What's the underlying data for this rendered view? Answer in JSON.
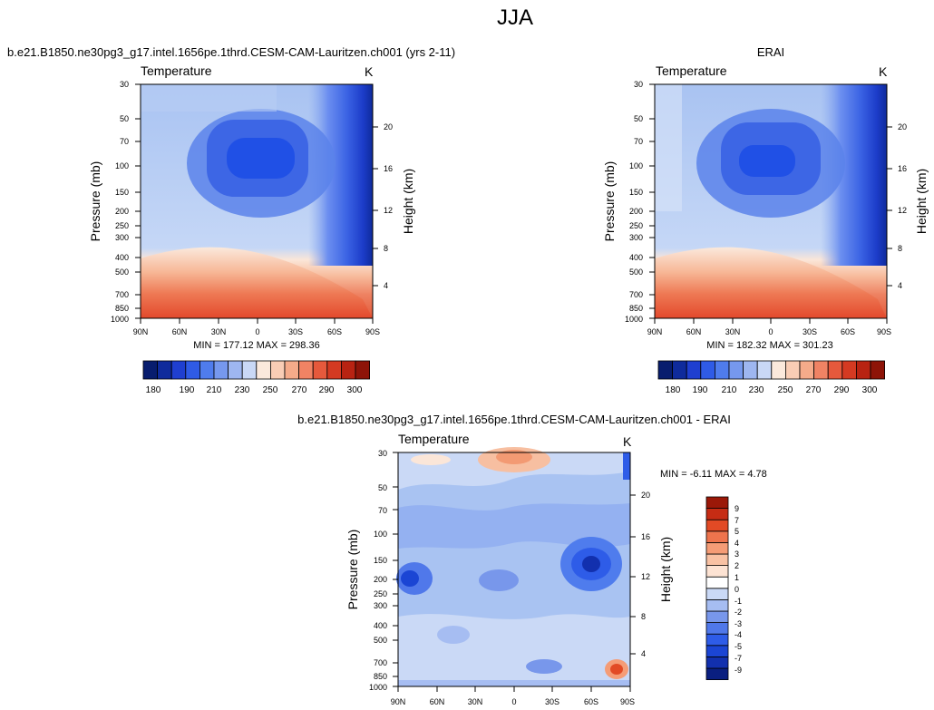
{
  "page_title": "JJA",
  "chart_data": [
    {
      "type": "heatmap",
      "panel": "model",
      "run_title": "b.e21.B1850.ne30pg3_g17.intel.1656pe.1thrd.CESM-CAM-Lauritzen.ch001 (yrs 2-11)",
      "variable": "Temperature",
      "units": "K",
      "xlabel": "",
      "ylabel": "Pressure (mb)",
      "y2label": "Height (km)",
      "x_ticks": [
        "90N",
        "60N",
        "30N",
        "0",
        "30S",
        "60S",
        "90S"
      ],
      "y_ticks": [
        "30",
        "50",
        "70",
        "100",
        "150",
        "200",
        "250",
        "300",
        "400",
        "500",
        "700",
        "850",
        "1000"
      ],
      "y2_ticks": [
        "20",
        "16",
        "12",
        "8",
        "4"
      ],
      "stats": "MIN = 177.12  MAX = 298.36",
      "colorbar_labels": [
        "180",
        "190",
        "210",
        "230",
        "250",
        "270",
        "290",
        "300"
      ]
    },
    {
      "type": "heatmap",
      "panel": "obs",
      "run_title": "ERAI",
      "variable": "Temperature",
      "units": "K",
      "ylabel": "Pressure (mb)",
      "y2label": "Height (km)",
      "x_ticks": [
        "90N",
        "60N",
        "30N",
        "0",
        "30S",
        "60S",
        "90S"
      ],
      "y_ticks": [
        "30",
        "50",
        "70",
        "100",
        "150",
        "200",
        "250",
        "300",
        "400",
        "500",
        "700",
        "850",
        "1000"
      ],
      "y2_ticks": [
        "20",
        "16",
        "12",
        "8",
        "4"
      ],
      "stats": "MIN = 182.32  MAX = 301.23",
      "colorbar_labels": [
        "180",
        "190",
        "210",
        "230",
        "250",
        "270",
        "290",
        "300"
      ]
    },
    {
      "type": "heatmap",
      "panel": "diff",
      "run_title": "b.e21.B1850.ne30pg3_g17.intel.1656pe.1thrd.CESM-CAM-Lauritzen.ch001 - ERAI",
      "variable": "Temperature",
      "units": "K",
      "ylabel": "Pressure (mb)",
      "y2label": "Height (km)",
      "x_ticks": [
        "90N",
        "60N",
        "30N",
        "0",
        "30S",
        "60S",
        "90S"
      ],
      "y_ticks": [
        "30",
        "50",
        "70",
        "100",
        "150",
        "200",
        "250",
        "300",
        "400",
        "500",
        "700",
        "850",
        "1000"
      ],
      "y2_ticks": [
        "20",
        "16",
        "12",
        "8",
        "4"
      ],
      "stats": "MIN = -6.11  MAX =  4.78",
      "colorbar_labels": [
        "9",
        "7",
        "5",
        "4",
        "3",
        "2",
        "1",
        "0",
        "-1",
        "-2",
        "-3",
        "-4",
        "-5",
        "-7",
        "-9"
      ]
    }
  ],
  "colors": {
    "abs_scale": [
      "#081d6e",
      "#0f2b9c",
      "#1f3fd0",
      "#2f5be6",
      "#4f7ced",
      "#7698ee",
      "#9eb6f0",
      "#c9d8f6",
      "#fbe9dc",
      "#f9cdb5",
      "#f5ab8a",
      "#f08364",
      "#e6593c",
      "#d43a22",
      "#b82312",
      "#8e1408"
    ],
    "diff_scale": [
      "#0a1f80",
      "#1230ae",
      "#1b45d4",
      "#2e5ce8",
      "#5078ea",
      "#7897eb",
      "#a6bdf2",
      "#cad9f6",
      "#ffffff",
      "#fde3d3",
      "#f9c2a4",
      "#f59c76",
      "#ee744d",
      "#e24a25",
      "#c62c14",
      "#9b1808"
    ]
  }
}
